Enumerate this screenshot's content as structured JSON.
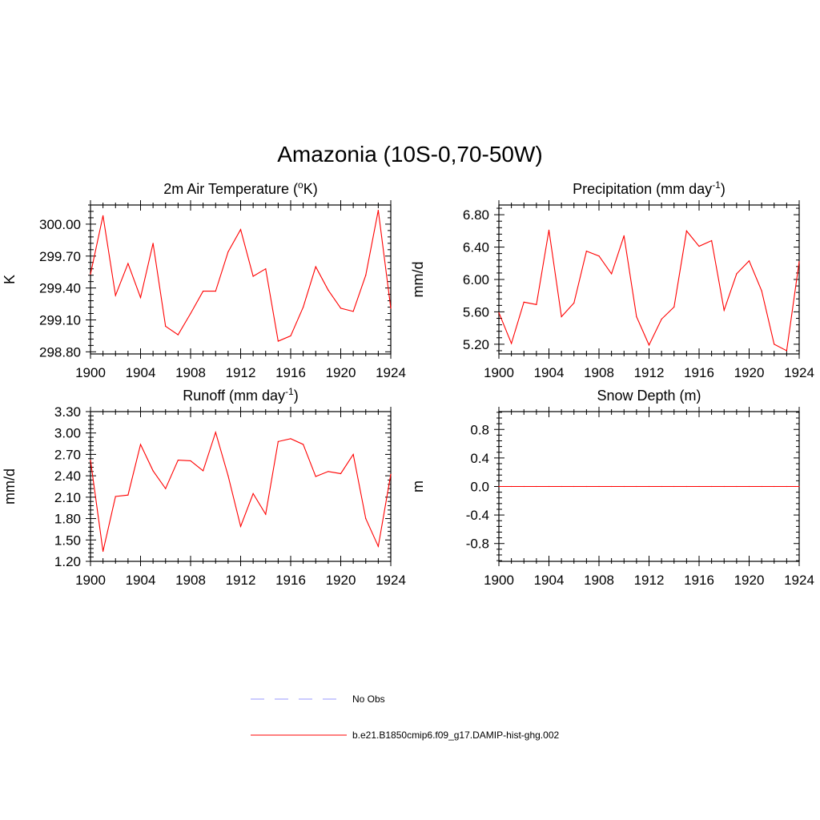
{
  "title": "Amazonia (10S-0,70-50W)",
  "chart_data": [
    {
      "type": "line",
      "title_main": "2m Air Temperature (",
      "title_sup": "o",
      "title_tail": "K)",
      "ylabel": "K",
      "xlim": [
        1900,
        1924
      ],
      "ylim": [
        298.78,
        300.18
      ],
      "x_ticks": [
        "1900",
        "1904",
        "1908",
        "1912",
        "1916",
        "1920",
        "1924"
      ],
      "y_ticks": [
        "298.80",
        "299.10",
        "299.40",
        "299.70",
        "300.00"
      ],
      "y_tick_values": [
        298.8,
        299.1,
        299.4,
        299.7,
        300.0
      ],
      "x": [
        1900,
        1901,
        1902,
        1903,
        1904,
        1905,
        1906,
        1907,
        1908,
        1909,
        1910,
        1911,
        1912,
        1913,
        1914,
        1915,
        1916,
        1917,
        1918,
        1919,
        1920,
        1921,
        1922,
        1923,
        1924
      ],
      "series": [
        {
          "name": "b.e21.B1850cmip6.f09_g17.DAMIP-hist-ghg.002",
          "values": [
            299.53,
            300.08,
            299.33,
            299.63,
            299.31,
            299.82,
            299.04,
            298.96,
            299.16,
            299.37,
            299.37,
            299.74,
            299.95,
            299.51,
            299.58,
            298.9,
            298.95,
            299.22,
            299.6,
            299.38,
            299.21,
            299.18,
            299.52,
            300.13,
            299.21
          ]
        }
      ]
    },
    {
      "type": "line",
      "title_main": "Precipitation (mm day",
      "title_sup": "-1",
      "title_tail": ")",
      "ylabel": "mm/d",
      "xlim": [
        1900,
        1924
      ],
      "ylim": [
        5.08,
        6.92
      ],
      "x_ticks": [
        "1900",
        "1904",
        "1908",
        "1912",
        "1916",
        "1920",
        "1924"
      ],
      "y_ticks": [
        "5.20",
        "5.60",
        "6.00",
        "6.40",
        "6.80"
      ],
      "y_tick_values": [
        5.2,
        5.6,
        6.0,
        6.4,
        6.8
      ],
      "x": [
        1900,
        1901,
        1902,
        1903,
        1904,
        1905,
        1906,
        1907,
        1908,
        1909,
        1910,
        1911,
        1912,
        1913,
        1914,
        1915,
        1916,
        1917,
        1918,
        1919,
        1920,
        1921,
        1922,
        1923,
        1924
      ],
      "series": [
        {
          "name": "b.e21.B1850cmip6.f09_g17.DAMIP-hist-ghg.002",
          "values": [
            5.59,
            5.21,
            5.72,
            5.69,
            6.61,
            5.54,
            5.71,
            6.35,
            6.29,
            6.07,
            6.54,
            5.54,
            5.19,
            5.51,
            5.66,
            6.6,
            6.41,
            6.48,
            5.62,
            6.07,
            6.23,
            5.86,
            5.2,
            5.12,
            6.22
          ]
        }
      ]
    },
    {
      "type": "line",
      "title_main": "Runoff (mm day",
      "title_sup": "-1",
      "title_tail": ")",
      "ylabel": "mm/d",
      "xlim": [
        1900,
        1924
      ],
      "ylim": [
        1.2,
        3.3
      ],
      "x_ticks": [
        "1900",
        "1904",
        "1908",
        "1912",
        "1916",
        "1920",
        "1924"
      ],
      "y_ticks": [
        "1.20",
        "1.50",
        "1.80",
        "2.10",
        "2.40",
        "2.70",
        "3.00",
        "3.30"
      ],
      "y_tick_values": [
        1.2,
        1.5,
        1.8,
        2.1,
        2.4,
        2.7,
        3.0,
        3.3
      ],
      "x": [
        1900,
        1901,
        1902,
        1903,
        1904,
        1905,
        1906,
        1907,
        1908,
        1909,
        1910,
        1911,
        1912,
        1913,
        1914,
        1915,
        1916,
        1917,
        1918,
        1919,
        1920,
        1921,
        1922,
        1923,
        1924
      ],
      "series": [
        {
          "name": "b.e21.B1850cmip6.f09_g17.DAMIP-hist-ghg.002",
          "values": [
            2.62,
            1.34,
            2.11,
            2.13,
            2.84,
            2.47,
            2.22,
            2.62,
            2.61,
            2.47,
            3.01,
            2.4,
            1.69,
            2.15,
            1.86,
            2.88,
            2.92,
            2.84,
            2.39,
            2.46,
            2.43,
            2.7,
            1.8,
            1.41,
            2.42
          ]
        }
      ]
    },
    {
      "type": "line",
      "title_main": "Snow Depth (m)",
      "title_sup": "",
      "title_tail": "",
      "ylabel": "m",
      "xlim": [
        1900,
        1924
      ],
      "ylim": [
        -1.05,
        1.05
      ],
      "x_ticks": [
        "1900",
        "1904",
        "1908",
        "1912",
        "1916",
        "1920",
        "1924"
      ],
      "y_ticks": [
        "-0.8",
        "-0.4",
        "0.0",
        "0.4",
        "0.8"
      ],
      "y_tick_values": [
        -0.8,
        -0.4,
        0.0,
        0.4,
        0.8
      ],
      "x": [
        1900,
        1901,
        1902,
        1903,
        1904,
        1905,
        1906,
        1907,
        1908,
        1909,
        1910,
        1911,
        1912,
        1913,
        1914,
        1915,
        1916,
        1917,
        1918,
        1919,
        1920,
        1921,
        1922,
        1923,
        1924
      ],
      "series": [
        {
          "name": "b.e21.B1850cmip6.f09_g17.DAMIP-hist-ghg.002",
          "values": [
            0,
            0,
            0,
            0,
            0,
            0,
            0,
            0,
            0,
            0,
            0,
            0,
            0,
            0,
            0,
            0,
            0,
            0,
            0,
            0,
            0,
            0,
            0,
            0,
            0
          ]
        }
      ]
    }
  ],
  "legend": [
    {
      "label": "No Obs",
      "color": "#9999ff",
      "style": "dashed"
    },
    {
      "label": "b.e21.B1850cmip6.f09_g17.DAMIP-hist-ghg.002",
      "color": "#ff0000",
      "style": "solid"
    }
  ],
  "colors": {
    "series": "#ff0000",
    "obs": "#9999ff",
    "axis": "#000000"
  }
}
